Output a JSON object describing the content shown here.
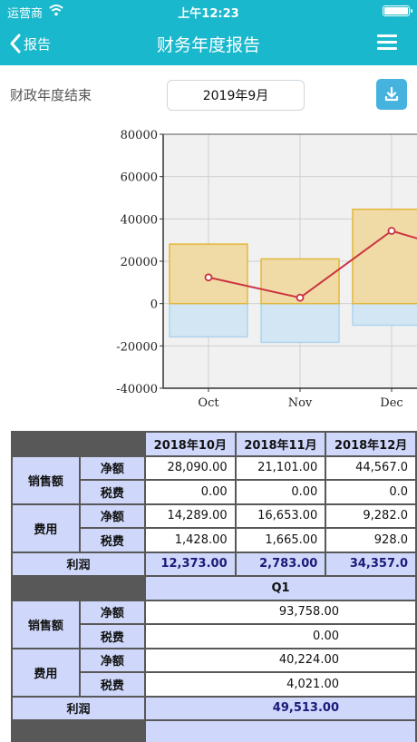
{
  "status_bar": {
    "carrier": "运营商",
    "time": "上午12:23"
  },
  "nav": {
    "back_label": "报告",
    "title": "财务年度报告"
  },
  "fiscal": {
    "label": "财政年度结束",
    "value": "2019年9月"
  },
  "icons": {
    "back": "chevron-left-icon",
    "menu": "hamburger-menu-icon",
    "download": "download-icon",
    "wifi": "wifi-icon",
    "battery": "battery-icon"
  },
  "colors": {
    "header": "#1ab8cc",
    "download_button": "#46b3de",
    "bar_positive": "#f0dba6",
    "bar_positive_border": "#e2b83a",
    "bar_negative": "#d3e6f4",
    "bar_negative_border": "#aed4ee",
    "line": "#cc3340",
    "table_header": "#cfd8fb",
    "table_grid": "#585858"
  },
  "chart_data": {
    "type": "bar",
    "categories": [
      "Oct",
      "Nov",
      "Dec"
    ],
    "series": [
      {
        "values": [
          28090,
          21101,
          44567
        ]
      },
      {
        "values": [
          -15717,
          -18318,
          -10210
        ]
      },
      {
        "values": [
          12373,
          2783,
          34357
        ]
      }
    ],
    "yticks": [
      80000,
      60000,
      40000,
      20000,
      0,
      -20000,
      -40000
    ],
    "ytick_labels": [
      "80000",
      "60000",
      "40000",
      "20000",
      "0",
      "-20000",
      "-40000"
    ],
    "ylim": [
      -40000,
      80000
    ],
    "grid": true,
    "title": "",
    "xlabel": "",
    "ylabel": ""
  },
  "report": {
    "months": [
      "2018年10月",
      "2018年11月",
      "2018年12月"
    ],
    "sales_label": "销售额",
    "expense_label": "费用",
    "net_label": "净额",
    "tax_label": "税费",
    "profit_label": "利润",
    "monthly": {
      "sales_net": [
        "28,090.00",
        "21,101.00",
        "44,567.0"
      ],
      "sales_tax": [
        "0.00",
        "0.00",
        "0.0"
      ],
      "exp_net": [
        "14,289.00",
        "16,653.00",
        "9,282.0"
      ],
      "exp_tax": [
        "1,428.00",
        "1,665.00",
        "928.0"
      ],
      "profit": [
        "12,373.00",
        "2,783.00",
        "34,357.0"
      ]
    },
    "quarter": {
      "label": "Q1",
      "sales_net": "93,758.00",
      "sales_tax": "0.00",
      "exp_net": "40,224.00",
      "exp_tax": "4,021.00",
      "profit": "49,513.00"
    }
  }
}
